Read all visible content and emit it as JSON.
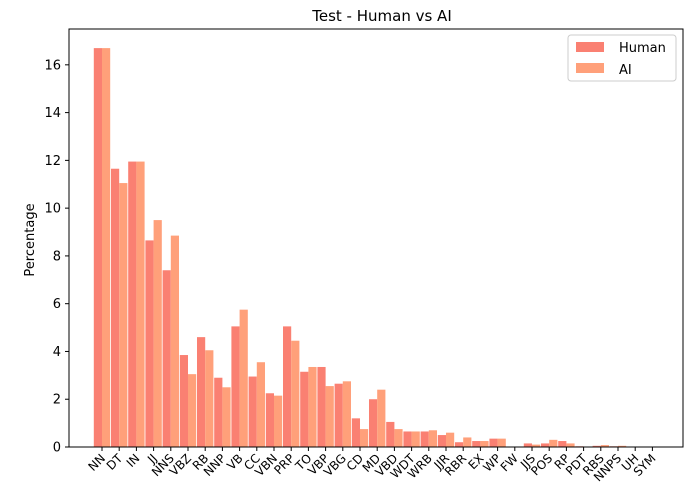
{
  "chart_data": {
    "type": "bar",
    "title": "Test - Human vs AI",
    "xlabel": "",
    "ylabel": "Percentage",
    "ylim": [
      0,
      17.5
    ],
    "yticks": [
      0,
      2,
      4,
      6,
      8,
      10,
      12,
      14,
      16
    ],
    "grid": false,
    "legend_position": "top-right",
    "categories": [
      "NN",
      "DT",
      "IN",
      "JJ",
      "NNS",
      "VBZ",
      "RB",
      "NNP",
      "VB",
      "CC",
      "VBN",
      "PRP",
      "TO",
      "VBP",
      "VBG",
      "CD",
      "MD",
      "VBD",
      "WDT",
      "WRB",
      "JJR",
      "RBR",
      "EX",
      "WP",
      "FW",
      "JJS",
      "POS",
      "RP",
      "PDT",
      "RBS",
      "NNPS",
      "UH",
      "SYM"
    ],
    "series": [
      {
        "name": "Human",
        "color": "#fa8072",
        "values": [
          16.7,
          11.65,
          11.95,
          8.65,
          7.4,
          3.85,
          4.6,
          2.9,
          5.05,
          2.95,
          2.25,
          5.05,
          3.15,
          3.35,
          2.65,
          1.2,
          2.0,
          1.05,
          0.65,
          0.65,
          0.5,
          0.2,
          0.25,
          0.35,
          0.02,
          0.15,
          0.15,
          0.25,
          0.03,
          0.05,
          0.03,
          0.01,
          0.0
        ]
      },
      {
        "name": "AI",
        "color": "#ffa07a",
        "values": [
          16.7,
          11.05,
          11.95,
          9.5,
          8.85,
          3.05,
          4.05,
          2.5,
          5.75,
          3.55,
          2.15,
          4.45,
          3.35,
          2.55,
          2.75,
          0.75,
          2.4,
          0.75,
          0.65,
          0.7,
          0.6,
          0.4,
          0.25,
          0.35,
          0.02,
          0.1,
          0.3,
          0.15,
          0.02,
          0.08,
          0.05,
          0.01,
          0.0
        ]
      }
    ]
  }
}
